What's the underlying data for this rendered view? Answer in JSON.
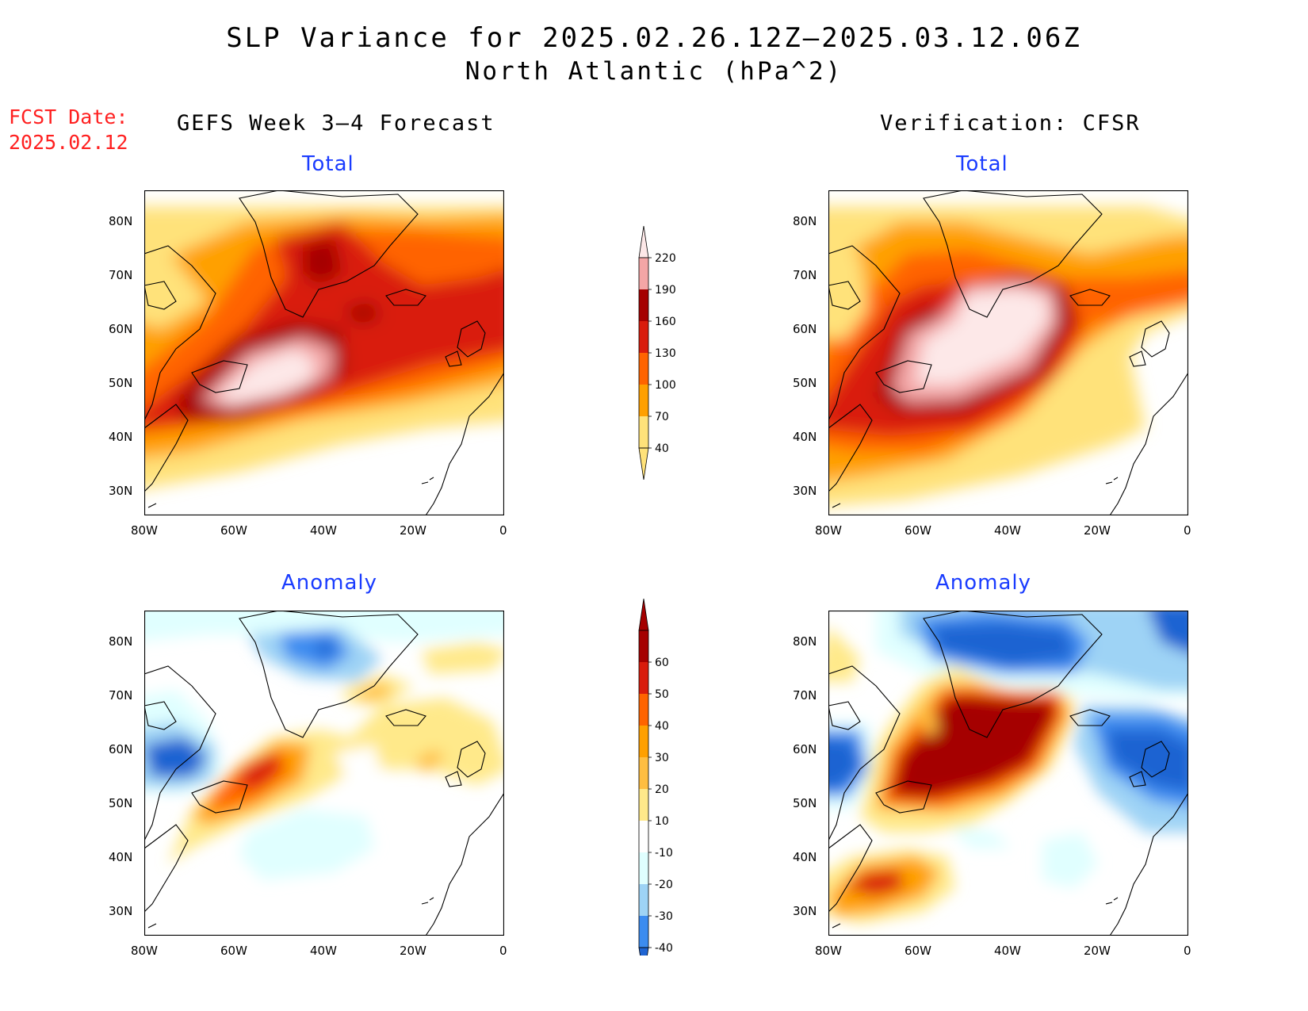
{
  "title": "SLP Variance for 2025.02.26.12Z–2025.03.12.06Z",
  "subtitle": "North Atlantic (hPa^2)",
  "fcst_label": "FCST Date:",
  "fcst_date": "2025.02.12",
  "columns": {
    "left": "GEFS Week 3–4 Forecast",
    "right": "Verification: CFSR"
  },
  "panels": {
    "fcst_total": "Total",
    "verif_total": "Total",
    "fcst_anom": "Anomaly",
    "verif_anom": "Anomaly"
  },
  "axes": {
    "lat_labels": [
      "80N",
      "70N",
      "60N",
      "50N",
      "40N",
      "30N"
    ],
    "lon_labels": [
      "80W",
      "60W",
      "40W",
      "20W",
      "0"
    ]
  },
  "colorbars": {
    "total": {
      "labels": [
        "220",
        "190",
        "160",
        "130",
        "100",
        "70",
        "40"
      ],
      "colors": [
        "#fde8e8",
        "#f4a6a6",
        "#a50000",
        "#d91c0c",
        "#ff6400",
        "#ffa000",
        "#ffe27a"
      ]
    },
    "anomaly": {
      "labels": [
        "60",
        "50",
        "40",
        "30",
        "20",
        "10",
        "-10",
        "-20",
        "-30",
        "-40"
      ],
      "colors": [
        "#a50000",
        "#d91c0c",
        "#ff6400",
        "#ffa000",
        "#ffbe41",
        "#ffe98a",
        "#ffffff",
        "#e0ffff",
        "#9ed3f5",
        "#3c8cf0",
        "#1f64d2"
      ]
    }
  },
  "chart_data": {
    "type": "heatmap",
    "fields": [
      "GEFS Week 3–4 Forecast Total",
      "Verification: CFSR Total",
      "GEFS Week 3–4 Forecast Anomaly",
      "Verification: CFSR Anomaly"
    ],
    "xrange": [
      -80,
      0
    ],
    "yrange": [
      25,
      85
    ]
  }
}
